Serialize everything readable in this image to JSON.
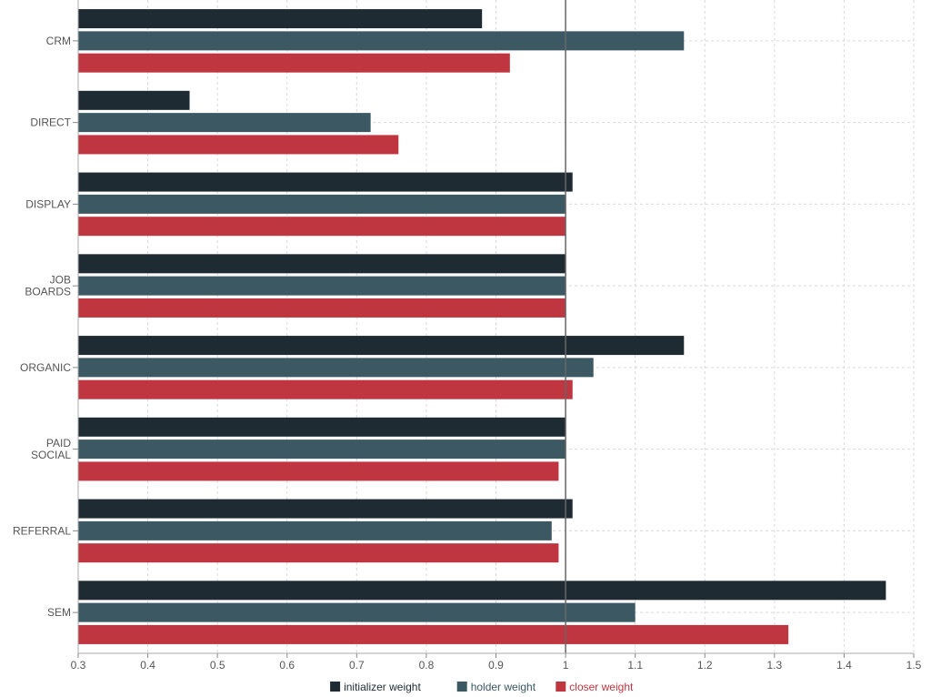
{
  "chart_data": {
    "type": "bar",
    "orientation": "horizontal",
    "categories": [
      "CRM",
      "DIRECT",
      "DISPLAY",
      "JOB BOARDS",
      "ORGANIC",
      "PAID SOCIAL",
      "REFERRAL",
      "SEM"
    ],
    "series": [
      {
        "name": "initializer weight",
        "color": "#1e2b33",
        "values": [
          0.88,
          0.46,
          1.01,
          1.0,
          1.17,
          1.0,
          1.01,
          1.46
        ]
      },
      {
        "name": "holder weight",
        "color": "#3b5863",
        "values": [
          1.17,
          0.72,
          1.0,
          1.0,
          1.04,
          1.0,
          0.98,
          1.1
        ]
      },
      {
        "name": "closer weight",
        "color": "#bf3540",
        "values": [
          0.92,
          0.76,
          1.0,
          1.0,
          1.01,
          0.99,
          0.99,
          1.32
        ]
      }
    ],
    "xlim": [
      0.3,
      1.5
    ],
    "xticks": [
      "0.3",
      "0.4",
      "0.5",
      "0.6",
      "0.7",
      "0.8",
      "0.9",
      "1",
      "1.1",
      "1.2",
      "1.3",
      "1.4",
      "1.5"
    ],
    "reference_line": 1,
    "grid": true,
    "legend_position": "bottom-center"
  }
}
